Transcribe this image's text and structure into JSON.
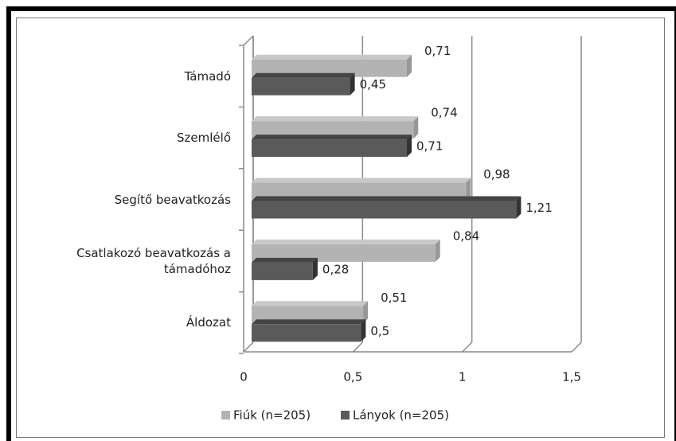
{
  "chart_data": {
    "type": "bar",
    "orientation": "horizontal",
    "categories": [
      "Támadó",
      "Szemlélő",
      "Segítő beavatkozás",
      "Csatlakozó beavatkozás a támadóhoz",
      "Áldozat"
    ],
    "series": [
      {
        "name": "Fiúk (n=205)",
        "color": "#b3b3b3",
        "values": [
          0.71,
          0.74,
          0.98,
          0.84,
          0.51
        ],
        "value_labels": [
          "0,71",
          "0,74",
          "0,98",
          "0,84",
          "0,51"
        ]
      },
      {
        "name": "Lányok (n=205)",
        "color": "#5a5a5a",
        "values": [
          0.45,
          0.71,
          1.21,
          0.28,
          0.5
        ],
        "value_labels": [
          "0,45",
          "0,71",
          "1,21",
          "0,28",
          "0,5"
        ]
      }
    ],
    "xlim": [
      0,
      1.5
    ],
    "xticks": [
      0,
      {
        "value": 0.5,
        "label": "0,5"
      },
      1,
      {
        "value": 1.5,
        "label": "1,5"
      }
    ],
    "grid": true,
    "legend": "bottom"
  }
}
